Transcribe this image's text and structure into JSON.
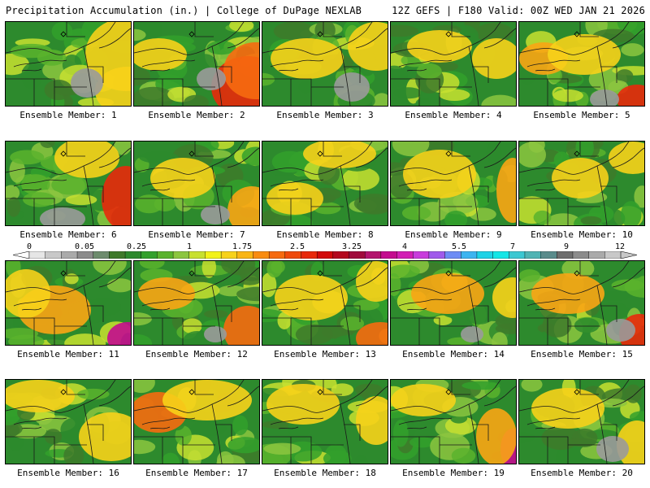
{
  "header": {
    "left": "Precipitation Accumulation (in.) | College of DuPage NEXLAB",
    "right": "12Z GEFS | F180 Valid: 00Z WED JAN 21 2026"
  },
  "panels": [
    {
      "label": "Ensemble Member: 1",
      "hot": [
        [
          148,
          40,
          "#f7d21a",
          50,
          45
        ],
        [
          150,
          85,
          "#f7d21a",
          40,
          30
        ]
      ],
      "gray": [
        [
          100,
          75,
          20,
          18
        ]
      ]
    },
    {
      "label": "Ensemble Member: 2",
      "hot": [
        [
          140,
          80,
          "#e8290b",
          45,
          38
        ],
        [
          150,
          60,
          "#f66a0f",
          40,
          35
        ],
        [
          30,
          40,
          "#f7d21a",
          35,
          20
        ]
      ],
      "gray": [
        [
          95,
          70,
          18,
          14
        ]
      ]
    },
    {
      "label": "Ensemble Member: 3",
      "hot": [
        [
          55,
          45,
          "#f7d21a",
          45,
          25
        ],
        [
          140,
          30,
          "#f7d21a",
          35,
          30
        ]
      ],
      "gray": [
        [
          110,
          80,
          22,
          18
        ]
      ]
    },
    {
      "label": "Ensemble Member: 4",
      "hot": [
        [
          60,
          30,
          "#f7d21a",
          40,
          20
        ],
        [
          130,
          45,
          "#f7d21a",
          30,
          25
        ]
      ],
      "gray": []
    },
    {
      "label": "Ensemble Member: 5",
      "hot": [
        [
          30,
          45,
          "#f9a514",
          30,
          20
        ],
        [
          145,
          95,
          "#e8290b",
          25,
          18
        ],
        [
          80,
          40,
          "#f7d21a",
          45,
          25
        ]
      ],
      "gray": [
        [
          105,
          95,
          18,
          12
        ]
      ]
    },
    {
      "label": "Ensemble Member: 6",
      "hot": [
        [
          148,
          70,
          "#e8290b",
          30,
          40
        ],
        [
          100,
          20,
          "#f7d21a",
          40,
          25
        ]
      ],
      "gray": [
        [
          70,
          95,
          28,
          14
        ]
      ]
    },
    {
      "label": "Ensemble Member: 7",
      "hot": [
        [
          60,
          45,
          "#f7d21a",
          40,
          25
        ],
        [
          145,
          85,
          "#f9a514",
          30,
          30
        ]
      ],
      "gray": [
        [
          100,
          90,
          18,
          12
        ]
      ]
    },
    {
      "label": "Ensemble Member: 8",
      "hot": [
        [
          95,
          15,
          "#f7d21a",
          45,
          18
        ],
        [
          40,
          70,
          "#f7d21a",
          35,
          20
        ]
      ],
      "gray": []
    },
    {
      "label": "Ensemble Member: 9",
      "hot": [
        [
          60,
          40,
          "#f7d21a",
          45,
          30
        ],
        [
          150,
          60,
          "#f9a514",
          20,
          40
        ]
      ],
      "gray": []
    },
    {
      "label": "Ensemble Member: 10",
      "hot": [
        [
          75,
          45,
          "#f7d21a",
          35,
          25
        ],
        [
          140,
          20,
          "#f7d21a",
          30,
          20
        ]
      ],
      "gray": []
    },
    {
      "label": "Ensemble Member: 11",
      "hot": [
        [
          60,
          60,
          "#f9a514",
          45,
          30
        ],
        [
          150,
          95,
          "#c40b8f",
          25,
          20
        ],
        [
          25,
          40,
          "#f7d21a",
          30,
          30
        ]
      ],
      "gray": []
    },
    {
      "label": "Ensemble Member: 12",
      "hot": [
        [
          40,
          40,
          "#f9a514",
          35,
          20
        ],
        [
          140,
          85,
          "#f66a0f",
          30,
          30
        ]
      ],
      "gray": [
        [
          100,
          90,
          14,
          10
        ]
      ]
    },
    {
      "label": "Ensemble Member: 13",
      "hot": [
        [
          60,
          45,
          "#f7d21a",
          45,
          28
        ],
        [
          145,
          95,
          "#f66a0f",
          30,
          20
        ],
        [
          140,
          25,
          "#f7d21a",
          25,
          25
        ]
      ],
      "gray": []
    },
    {
      "label": "Ensemble Member: 14",
      "hot": [
        [
          70,
          40,
          "#f9a514",
          45,
          25
        ],
        [
          150,
          45,
          "#f7d21a",
          25,
          25
        ]
      ],
      "gray": [
        [
          100,
          90,
          14,
          10
        ]
      ]
    },
    {
      "label": "Ensemble Member: 15",
      "hot": [
        [
          60,
          40,
          "#f9a514",
          45,
          25
        ],
        [
          148,
          90,
          "#e8290b",
          25,
          25
        ]
      ],
      "gray": [
        [
          125,
          85,
          18,
          14
        ]
      ]
    },
    {
      "label": "Ensemble Member: 16",
      "hot": [
        [
          40,
          20,
          "#f7d21a",
          45,
          20
        ],
        [
          130,
          70,
          "#f7d21a",
          40,
          30
        ]
      ],
      "gray": []
    },
    {
      "label": "Ensemble Member: 17",
      "hot": [
        [
          30,
          40,
          "#f66a0f",
          35,
          25
        ],
        [
          90,
          25,
          "#f7d21a",
          55,
          25
        ]
      ],
      "gray": []
    },
    {
      "label": "Ensemble Member: 18",
      "hot": [
        [
          50,
          30,
          "#f7d21a",
          45,
          25
        ],
        [
          140,
          50,
          "#f7d21a",
          25,
          30
        ]
      ],
      "gray": []
    },
    {
      "label": "Ensemble Member: 19",
      "hot": [
        [
          150,
          85,
          "#c40b8f",
          15,
          25
        ],
        [
          130,
          70,
          "#f9a514",
          25,
          35
        ],
        [
          40,
          25,
          "#f7d21a",
          40,
          20
        ]
      ],
      "gray": []
    },
    {
      "label": "Ensemble Member: 20",
      "hot": [
        [
          60,
          35,
          "#f7d21a",
          45,
          25
        ],
        [
          145,
          80,
          "#f7d21a",
          25,
          30
        ]
      ],
      "gray": [
        [
          115,
          85,
          20,
          16
        ]
      ]
    }
  ],
  "colorbar": {
    "labels": [
      "0",
      "0.05",
      "0.25",
      "1",
      "1.75",
      "2.5",
      "3.25",
      "4",
      "5.5",
      "7",
      "9",
      "12"
    ],
    "colors": [
      "#e6e6e6",
      "#c8c8c8",
      "#aaaaaa",
      "#8c8c8c",
      "#6e8c6e",
      "#3e7a2a",
      "#2d8a2d",
      "#33a02c",
      "#5ab32d",
      "#8cc63f",
      "#c8e030",
      "#f2f21a",
      "#f7d21a",
      "#f9b514",
      "#f98c10",
      "#f66a0f",
      "#ef4a0c",
      "#e8290b",
      "#d20a0a",
      "#b4081e",
      "#a00a3c",
      "#b4146e",
      "#c40b8f",
      "#d21eb4",
      "#c83cdc",
      "#a05aeb",
      "#6e8cf5",
      "#3cb4f0",
      "#1ed2e6",
      "#14e6e6",
      "#3cc8d2",
      "#50b4b4",
      "#5a8c8c",
      "#6e6e6e",
      "#8c8c8c",
      "#aaaaaa",
      "#c8c8c8"
    ]
  }
}
